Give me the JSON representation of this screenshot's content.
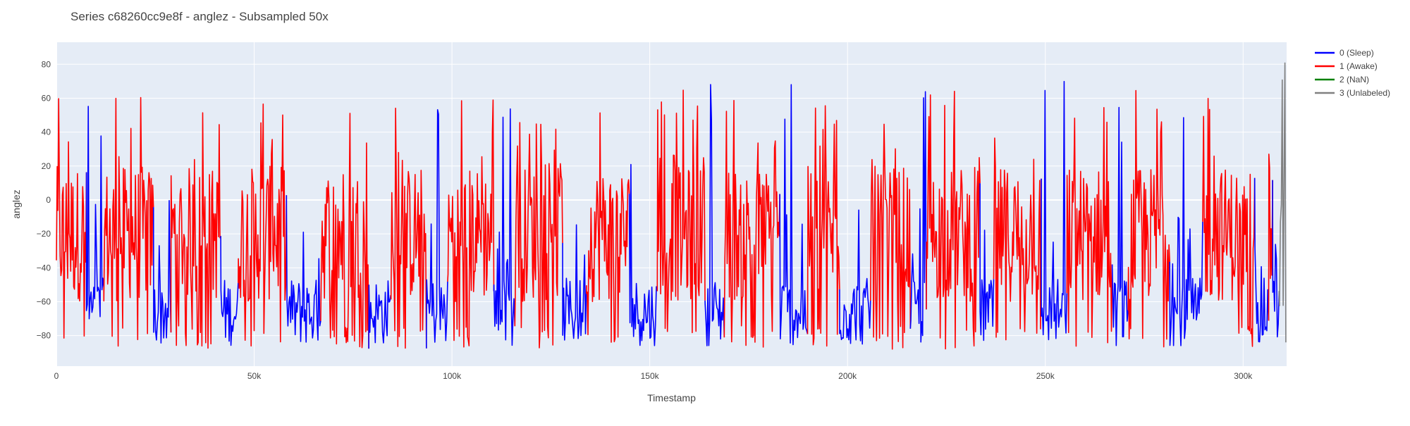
{
  "chart_data": {
    "type": "line",
    "title": "Series c68260cc9e8f - anglez - Subsampled 50x",
    "xlabel": "Timestamp",
    "ylabel": "anglez",
    "xlim": [
      0,
      311000
    ],
    "ylim": [
      -98,
      93
    ],
    "x_ticks": [
      {
        "value": 0,
        "label": "0"
      },
      {
        "value": 50000,
        "label": "50k"
      },
      {
        "value": 100000,
        "label": "100k"
      },
      {
        "value": 150000,
        "label": "150k"
      },
      {
        "value": 200000,
        "label": "200k"
      },
      {
        "value": 250000,
        "label": "250k"
      },
      {
        "value": 300000,
        "label": "300k"
      }
    ],
    "y_ticks": [
      {
        "value": -80,
        "label": "−80"
      },
      {
        "value": -60,
        "label": "−60"
      },
      {
        "value": -40,
        "label": "−40"
      },
      {
        "value": -20,
        "label": "−20"
      },
      {
        "value": 0,
        "label": "0"
      },
      {
        "value": 20,
        "label": "20"
      },
      {
        "value": 40,
        "label": "40"
      },
      {
        "value": 60,
        "label": "60"
      },
      {
        "value": 80,
        "label": "80"
      }
    ],
    "grid": true,
    "legend_position": "top-right",
    "colors": {
      "plot_background": "#E5ECF6",
      "grid": "#ffffff",
      "sleep": "#0000FF",
      "awake": "#FF0000",
      "nan": "#008000",
      "unlabeled": "#808080"
    },
    "series": [
      {
        "name": "0 (Sleep)",
        "color": "#0000FF"
      },
      {
        "name": "1 (Awake)",
        "color": "#FF0000"
      },
      {
        "name": "2 (NaN)",
        "color": "#008000"
      },
      {
        "name": "3 (Unlabeled)",
        "color": "#808080"
      }
    ],
    "segments": [
      {
        "label": 1,
        "x_start": 0,
        "x_end": 7600
      },
      {
        "label": 0,
        "x_start": 7600,
        "x_end": 12000
      },
      {
        "label": 1,
        "x_start": 12000,
        "x_end": 24600
      },
      {
        "label": 0,
        "x_start": 24600,
        "x_end": 29000
      },
      {
        "label": 1,
        "x_start": 29000,
        "x_end": 41600
      },
      {
        "label": 0,
        "x_start": 41600,
        "x_end": 46000
      },
      {
        "label": 1,
        "x_start": 46000,
        "x_end": 58300
      },
      {
        "label": 0,
        "x_start": 58300,
        "x_end": 67000
      },
      {
        "label": 1,
        "x_start": 67000,
        "x_end": 79000
      },
      {
        "label": 0,
        "x_start": 79000,
        "x_end": 84600
      },
      {
        "label": 1,
        "x_start": 84600,
        "x_end": 93600
      },
      {
        "label": 0,
        "x_start": 93600,
        "x_end": 99000
      },
      {
        "label": 1,
        "x_start": 99000,
        "x_end": 110600
      },
      {
        "label": 0,
        "x_start": 110600,
        "x_end": 116000
      },
      {
        "label": 1,
        "x_start": 116000,
        "x_end": 128000
      },
      {
        "label": 0,
        "x_start": 128000,
        "x_end": 134000
      },
      {
        "label": 1,
        "x_start": 134000,
        "x_end": 145000
      },
      {
        "label": 0,
        "x_start": 145000,
        "x_end": 152000
      },
      {
        "label": 1,
        "x_start": 152000,
        "x_end": 164000
      },
      {
        "label": 0,
        "x_start": 164000,
        "x_end": 169000
      },
      {
        "label": 1,
        "x_start": 169000,
        "x_end": 183000
      },
      {
        "label": 0,
        "x_start": 183000,
        "x_end": 190000
      },
      {
        "label": 1,
        "x_start": 190000,
        "x_end": 198000
      },
      {
        "label": 0,
        "x_start": 198000,
        "x_end": 206000
      },
      {
        "label": 1,
        "x_start": 206000,
        "x_end": 216000
      },
      {
        "label": 0,
        "x_start": 216000,
        "x_end": 220000
      },
      {
        "label": 1,
        "x_start": 220000,
        "x_end": 233500
      },
      {
        "label": 0,
        "x_start": 233500,
        "x_end": 237000
      },
      {
        "label": 1,
        "x_start": 237000,
        "x_end": 249000
      },
      {
        "label": 0,
        "x_start": 249000,
        "x_end": 255500
      },
      {
        "label": 1,
        "x_start": 255500,
        "x_end": 267000
      },
      {
        "label": 0,
        "x_start": 267000,
        "x_end": 271000
      },
      {
        "label": 1,
        "x_start": 271000,
        "x_end": 281500
      },
      {
        "label": 0,
        "x_start": 281500,
        "x_end": 290000
      },
      {
        "label": 1,
        "x_start": 290000,
        "x_end": 303000
      },
      {
        "label": 0,
        "x_start": 303000,
        "x_end": 306500
      },
      {
        "label": 1,
        "x_start": 306500,
        "x_end": 307500
      },
      {
        "label": 0,
        "x_start": 307500,
        "x_end": 309200
      },
      {
        "label": 3,
        "x_start": 309200,
        "x_end": 311000
      }
    ]
  }
}
